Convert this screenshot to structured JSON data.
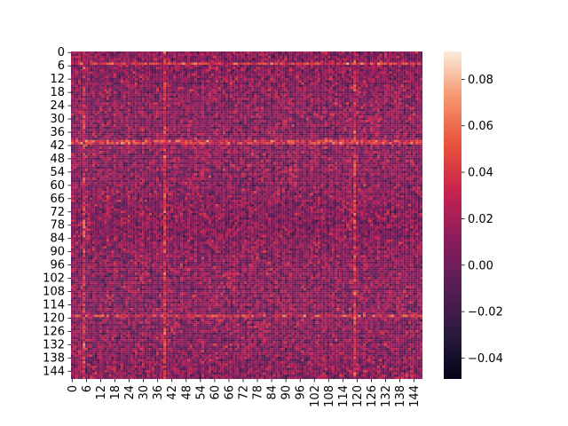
{
  "chart_data": {
    "type": "heatmap",
    "title": "",
    "xlabel": "",
    "ylabel": "",
    "rows": 148,
    "cols": 148,
    "x_tick_labels": [
      "0",
      "6",
      "12",
      "18",
      "24",
      "30",
      "36",
      "42",
      "48",
      "54",
      "60",
      "66",
      "72",
      "78",
      "84",
      "90",
      "96",
      "102",
      "108",
      "114",
      "120",
      "126",
      "132",
      "138",
      "144"
    ],
    "y_tick_labels": [
      "0",
      "6",
      "12",
      "18",
      "24",
      "30",
      "36",
      "42",
      "48",
      "54",
      "60",
      "66",
      "72",
      "78",
      "84",
      "90",
      "96",
      "102",
      "108",
      "114",
      "120",
      "126",
      "132",
      "138",
      "144"
    ],
    "value_range": [
      -0.049,
      0.092
    ],
    "approx_center_value": 0.01,
    "bright_rows": [
      5,
      40,
      41,
      119
    ],
    "bright_cols": [
      5,
      39,
      119
    ],
    "colormap": "rocket",
    "colorbar": {
      "ticks": [
        "−0.04",
        "−0.02",
        "0.00",
        "0.02",
        "0.04",
        "0.06",
        "0.08"
      ],
      "tick_values": [
        -0.04,
        -0.02,
        0.0,
        0.02,
        0.04,
        0.06,
        0.08
      ]
    },
    "grid": false,
    "legend": "none"
  }
}
